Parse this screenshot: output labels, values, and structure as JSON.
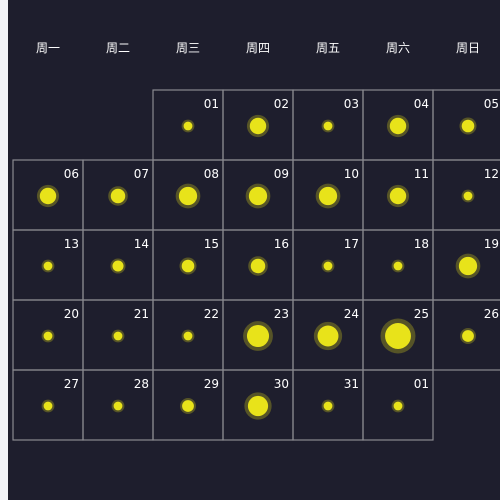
{
  "colors": {
    "background": "#1e1e2d",
    "cell_border": "#8a8a90",
    "text": "#ffffff",
    "point": "#e8e31a",
    "glow": "#e8e31a"
  },
  "chart_data": {
    "type": "calendar-scatter",
    "weekdays": [
      "周一",
      "周二",
      "周三",
      "周四",
      "周五",
      "周六",
      "周日"
    ],
    "days": [
      {
        "label": "01",
        "row": 0,
        "col": 2,
        "value": 1
      },
      {
        "label": "02",
        "row": 0,
        "col": 3,
        "value": 3
      },
      {
        "label": "03",
        "row": 0,
        "col": 4,
        "value": 1
      },
      {
        "label": "04",
        "row": 0,
        "col": 5,
        "value": 3
      },
      {
        "label": "05",
        "row": 0,
        "col": 6,
        "value": 2
      },
      {
        "label": "06",
        "row": 1,
        "col": 0,
        "value": 3
      },
      {
        "label": "07",
        "row": 1,
        "col": 1,
        "value": 2.5
      },
      {
        "label": "08",
        "row": 1,
        "col": 2,
        "value": 3.5
      },
      {
        "label": "09",
        "row": 1,
        "col": 3,
        "value": 3.5
      },
      {
        "label": "10",
        "row": 1,
        "col": 4,
        "value": 3.5
      },
      {
        "label": "11",
        "row": 1,
        "col": 5,
        "value": 3
      },
      {
        "label": "12",
        "row": 1,
        "col": 6,
        "value": 1
      },
      {
        "label": "13",
        "row": 2,
        "col": 0,
        "value": 1
      },
      {
        "label": "14",
        "row": 2,
        "col": 1,
        "value": 1.6
      },
      {
        "label": "15",
        "row": 2,
        "col": 2,
        "value": 2
      },
      {
        "label": "16",
        "row": 2,
        "col": 3,
        "value": 2.5
      },
      {
        "label": "17",
        "row": 2,
        "col": 4,
        "value": 1
      },
      {
        "label": "18",
        "row": 2,
        "col": 5,
        "value": 1
      },
      {
        "label": "19",
        "row": 2,
        "col": 6,
        "value": 3.5
      },
      {
        "label": "20",
        "row": 3,
        "col": 0,
        "value": 1
      },
      {
        "label": "21",
        "row": 3,
        "col": 1,
        "value": 1
      },
      {
        "label": "22",
        "row": 3,
        "col": 2,
        "value": 1
      },
      {
        "label": "23",
        "row": 3,
        "col": 3,
        "value": 4.5
      },
      {
        "label": "24",
        "row": 3,
        "col": 4,
        "value": 4.2
      },
      {
        "label": "25",
        "row": 3,
        "col": 5,
        "value": 5.5
      },
      {
        "label": "26",
        "row": 3,
        "col": 6,
        "value": 1.8
      },
      {
        "label": "27",
        "row": 4,
        "col": 0,
        "value": 1
      },
      {
        "label": "28",
        "row": 4,
        "col": 1,
        "value": 1
      },
      {
        "label": "29",
        "row": 4,
        "col": 2,
        "value": 1.8
      },
      {
        "label": "30",
        "row": 4,
        "col": 3,
        "value": 4
      },
      {
        "label": "31",
        "row": 4,
        "col": 4,
        "value": 1
      },
      {
        "label": "01",
        "row": 4,
        "col": 5,
        "value": 1
      }
    ]
  }
}
